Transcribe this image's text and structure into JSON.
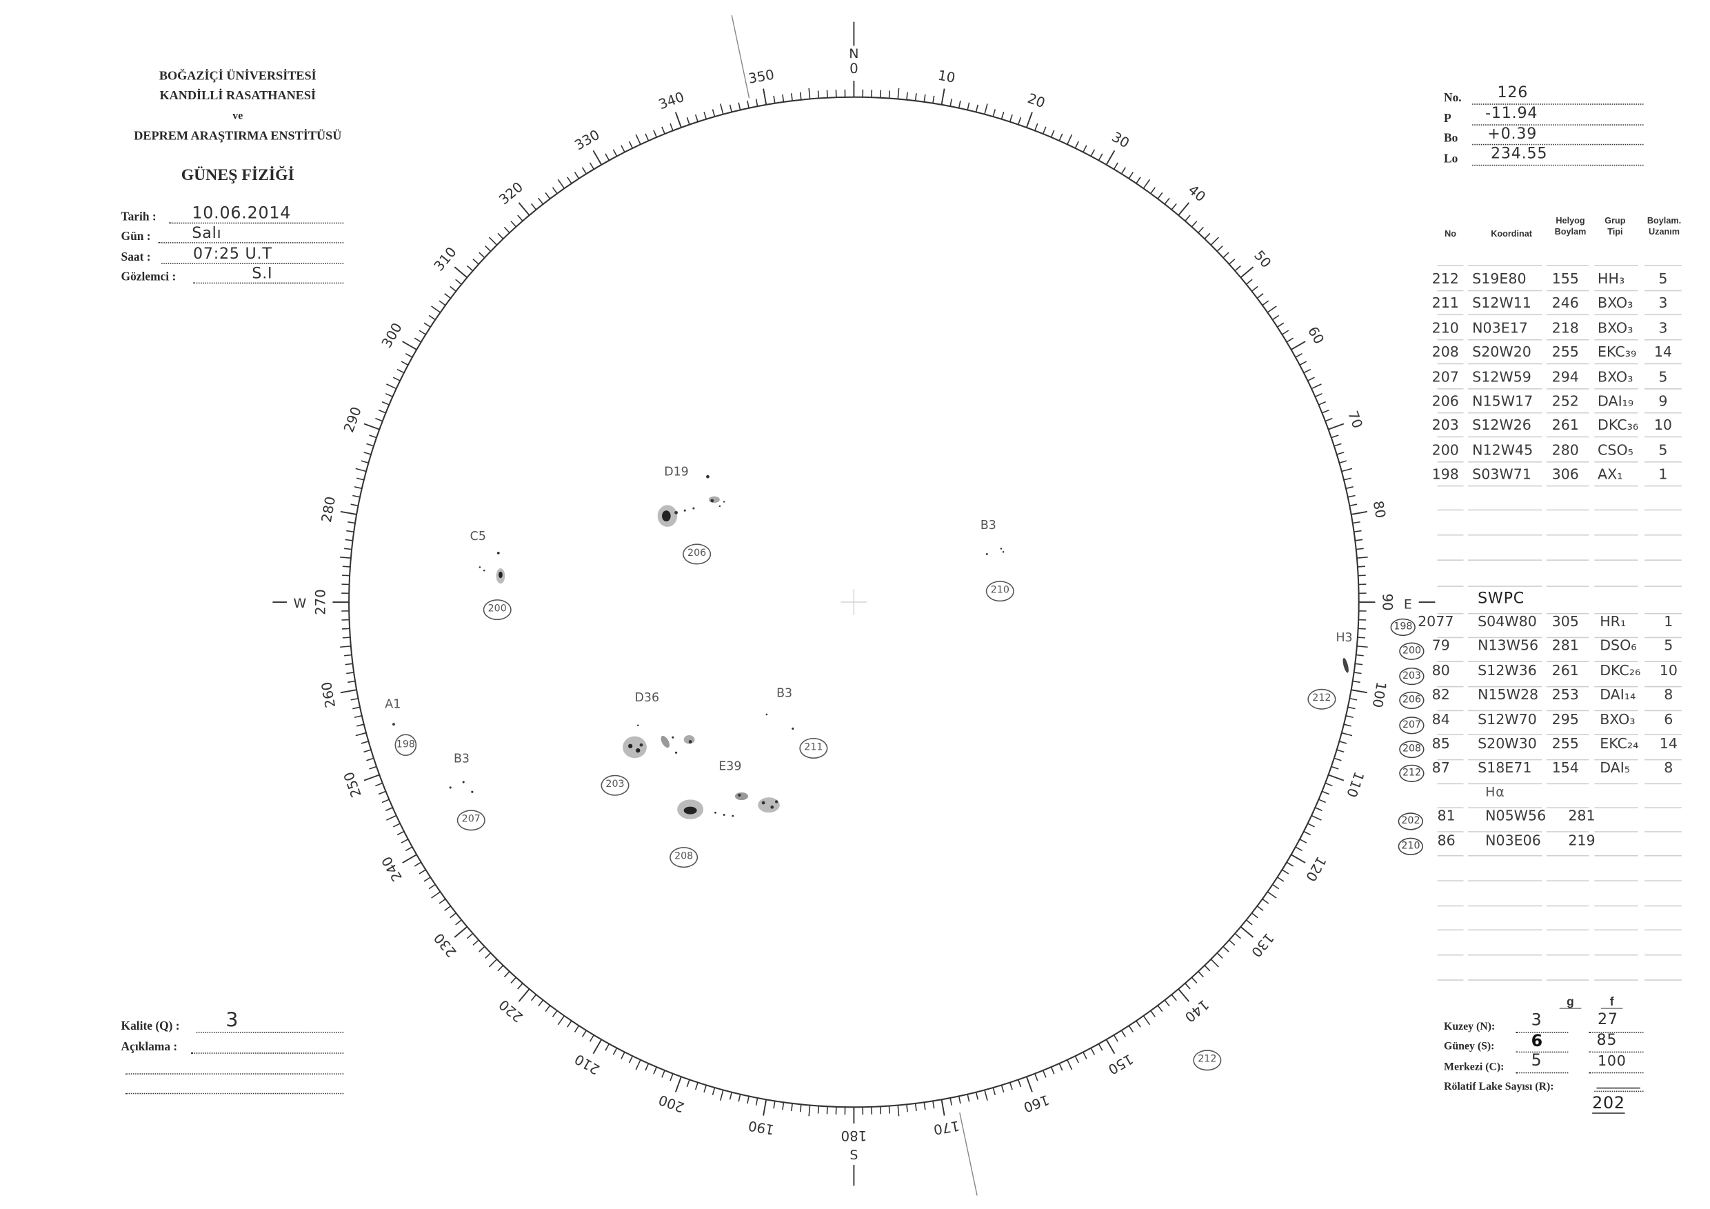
{
  "header": {
    "institution": [
      "BOĞAZİÇİ ÜNİVERSİTESİ",
      "KANDİLLİ RASATHANESİ",
      "ve",
      "DEPREM ARAŞTIRMA ENSTİTÜSÜ"
    ],
    "title": "GÜNEŞ FİZİĞİ"
  },
  "observation": {
    "date_label": "Tarih :",
    "date": "10.06.2014",
    "day_label": "Gün :",
    "day": "Salı",
    "time_label": "Saat :",
    "time": "07:25 U.T",
    "observer_label": "Gözlemci :",
    "observer": "S.I"
  },
  "remarks": {
    "quality_label": "Kalite (Q) :",
    "quality": "3",
    "comment_label": "Açıklama :"
  },
  "params": {
    "no_label": "No.",
    "no": "126",
    "p_label": "P",
    "p": "-11.94",
    "bo_label": "Bo",
    "bo": "+0.39",
    "lo_label": "Lo",
    "lo": "234.55"
  },
  "table": {
    "headers": [
      "No",
      "Koordinat",
      "Helyog Boylam",
      "Grup Tipi",
      "Boylam. Uzanım"
    ],
    "rows": [
      {
        "no": "212",
        "coord": "S19E80",
        "lon": "155",
        "type": "HH₃",
        "ext": "5"
      },
      {
        "no": "211",
        "coord": "S12W11",
        "lon": "246",
        "type": "BXO₃",
        "ext": "3"
      },
      {
        "no": "210",
        "coord": "N03E17",
        "lon": "218",
        "type": "BXO₃",
        "ext": "3"
      },
      {
        "no": "208",
        "coord": "S20W20",
        "lon": "255",
        "type": "EKC₃₉",
        "ext": "14"
      },
      {
        "no": "207",
        "coord": "S12W59",
        "lon": "294",
        "type": "BXO₃",
        "ext": "5"
      },
      {
        "no": "206",
        "coord": "N15W17",
        "lon": "252",
        "type": "DAI₁₉",
        "ext": "9"
      },
      {
        "no": "203",
        "coord": "S12W26",
        "lon": "261",
        "type": "DKC₃₆",
        "ext": "10"
      },
      {
        "no": "200",
        "coord": "N12W45",
        "lon": "280",
        "type": "CSO₅",
        "ext": "5"
      },
      {
        "no": "198",
        "coord": "S03W71",
        "lon": "306",
        "type": "AX₁",
        "ext": "1"
      }
    ],
    "swpc_title": "SWPC",
    "swpc_rows": [
      {
        "ref": "198",
        "no": "2077",
        "coord": "S04W80",
        "lon": "305",
        "type": "HR₁",
        "ext": "1"
      },
      {
        "ref": "200",
        "no": "79",
        "coord": "N13W56",
        "lon": "281",
        "type": "DSO₆",
        "ext": "5"
      },
      {
        "ref": "203",
        "no": "80",
        "coord": "S12W36",
        "lon": "261",
        "type": "DKC₂₆",
        "ext": "10"
      },
      {
        "ref": "206",
        "no": "82",
        "coord": "N15W28",
        "lon": "253",
        "type": "DAI₁₄",
        "ext": "8"
      },
      {
        "ref": "207",
        "no": "84",
        "coord": "S12W70",
        "lon": "295",
        "type": "BXO₃",
        "ext": "6"
      },
      {
        "ref": "208",
        "no": "85",
        "coord": "S20W30",
        "lon": "255",
        "type": "EKC₂₄",
        "ext": "14"
      },
      {
        "ref": "212",
        "no": "87",
        "coord": "S18E71",
        "lon": "154",
        "type": "DAI₅",
        "ext": "8"
      }
    ],
    "halpha_title": "Hα",
    "halpha_rows": [
      {
        "ref": "202",
        "no": "81",
        "coord": "N05W56",
        "lon": "281"
      },
      {
        "ref": "210",
        "no": "86",
        "coord": "N03E06",
        "lon": "219"
      }
    ]
  },
  "counts": {
    "g_label": "g",
    "f_label": "f",
    "north_label": "Kuzey (N):",
    "north_g": "3",
    "north_f": "27",
    "south_label": "Güney (S):",
    "south_g": "6",
    "south_f": "85",
    "center_label": "Merkezi (C):",
    "center_g": "5",
    "center_f": "100",
    "r_label": "Rölatif Lake Sayısı (R):",
    "r_value": "202"
  },
  "dial": {
    "compass": {
      "n": "N",
      "e": "E",
      "s": "S",
      "w": "W"
    },
    "labels": [
      "0",
      "10",
      "20",
      "30",
      "40",
      "50",
      "60",
      "70",
      "80",
      "90",
      "100",
      "110",
      "120",
      "130",
      "140",
      "150",
      "160",
      "170",
      "180",
      "190",
      "200",
      "210",
      "220",
      "230",
      "240",
      "250",
      "260",
      "270",
      "280",
      "290",
      "300",
      "310",
      "320",
      "330",
      "340",
      "350"
    ]
  },
  "groups": [
    {
      "id": "206",
      "class": "D19"
    },
    {
      "id": "200",
      "class": "C5"
    },
    {
      "id": "210",
      "class": "B3"
    },
    {
      "id": "212",
      "class": "H3"
    },
    {
      "id": "198",
      "class": "A1"
    },
    {
      "id": "207",
      "class": "B3"
    },
    {
      "id": "203",
      "class": "D36"
    },
    {
      "id": "211",
      "class": "B3"
    },
    {
      "id": "208",
      "class": "E39"
    }
  ],
  "extra_circle": "212"
}
